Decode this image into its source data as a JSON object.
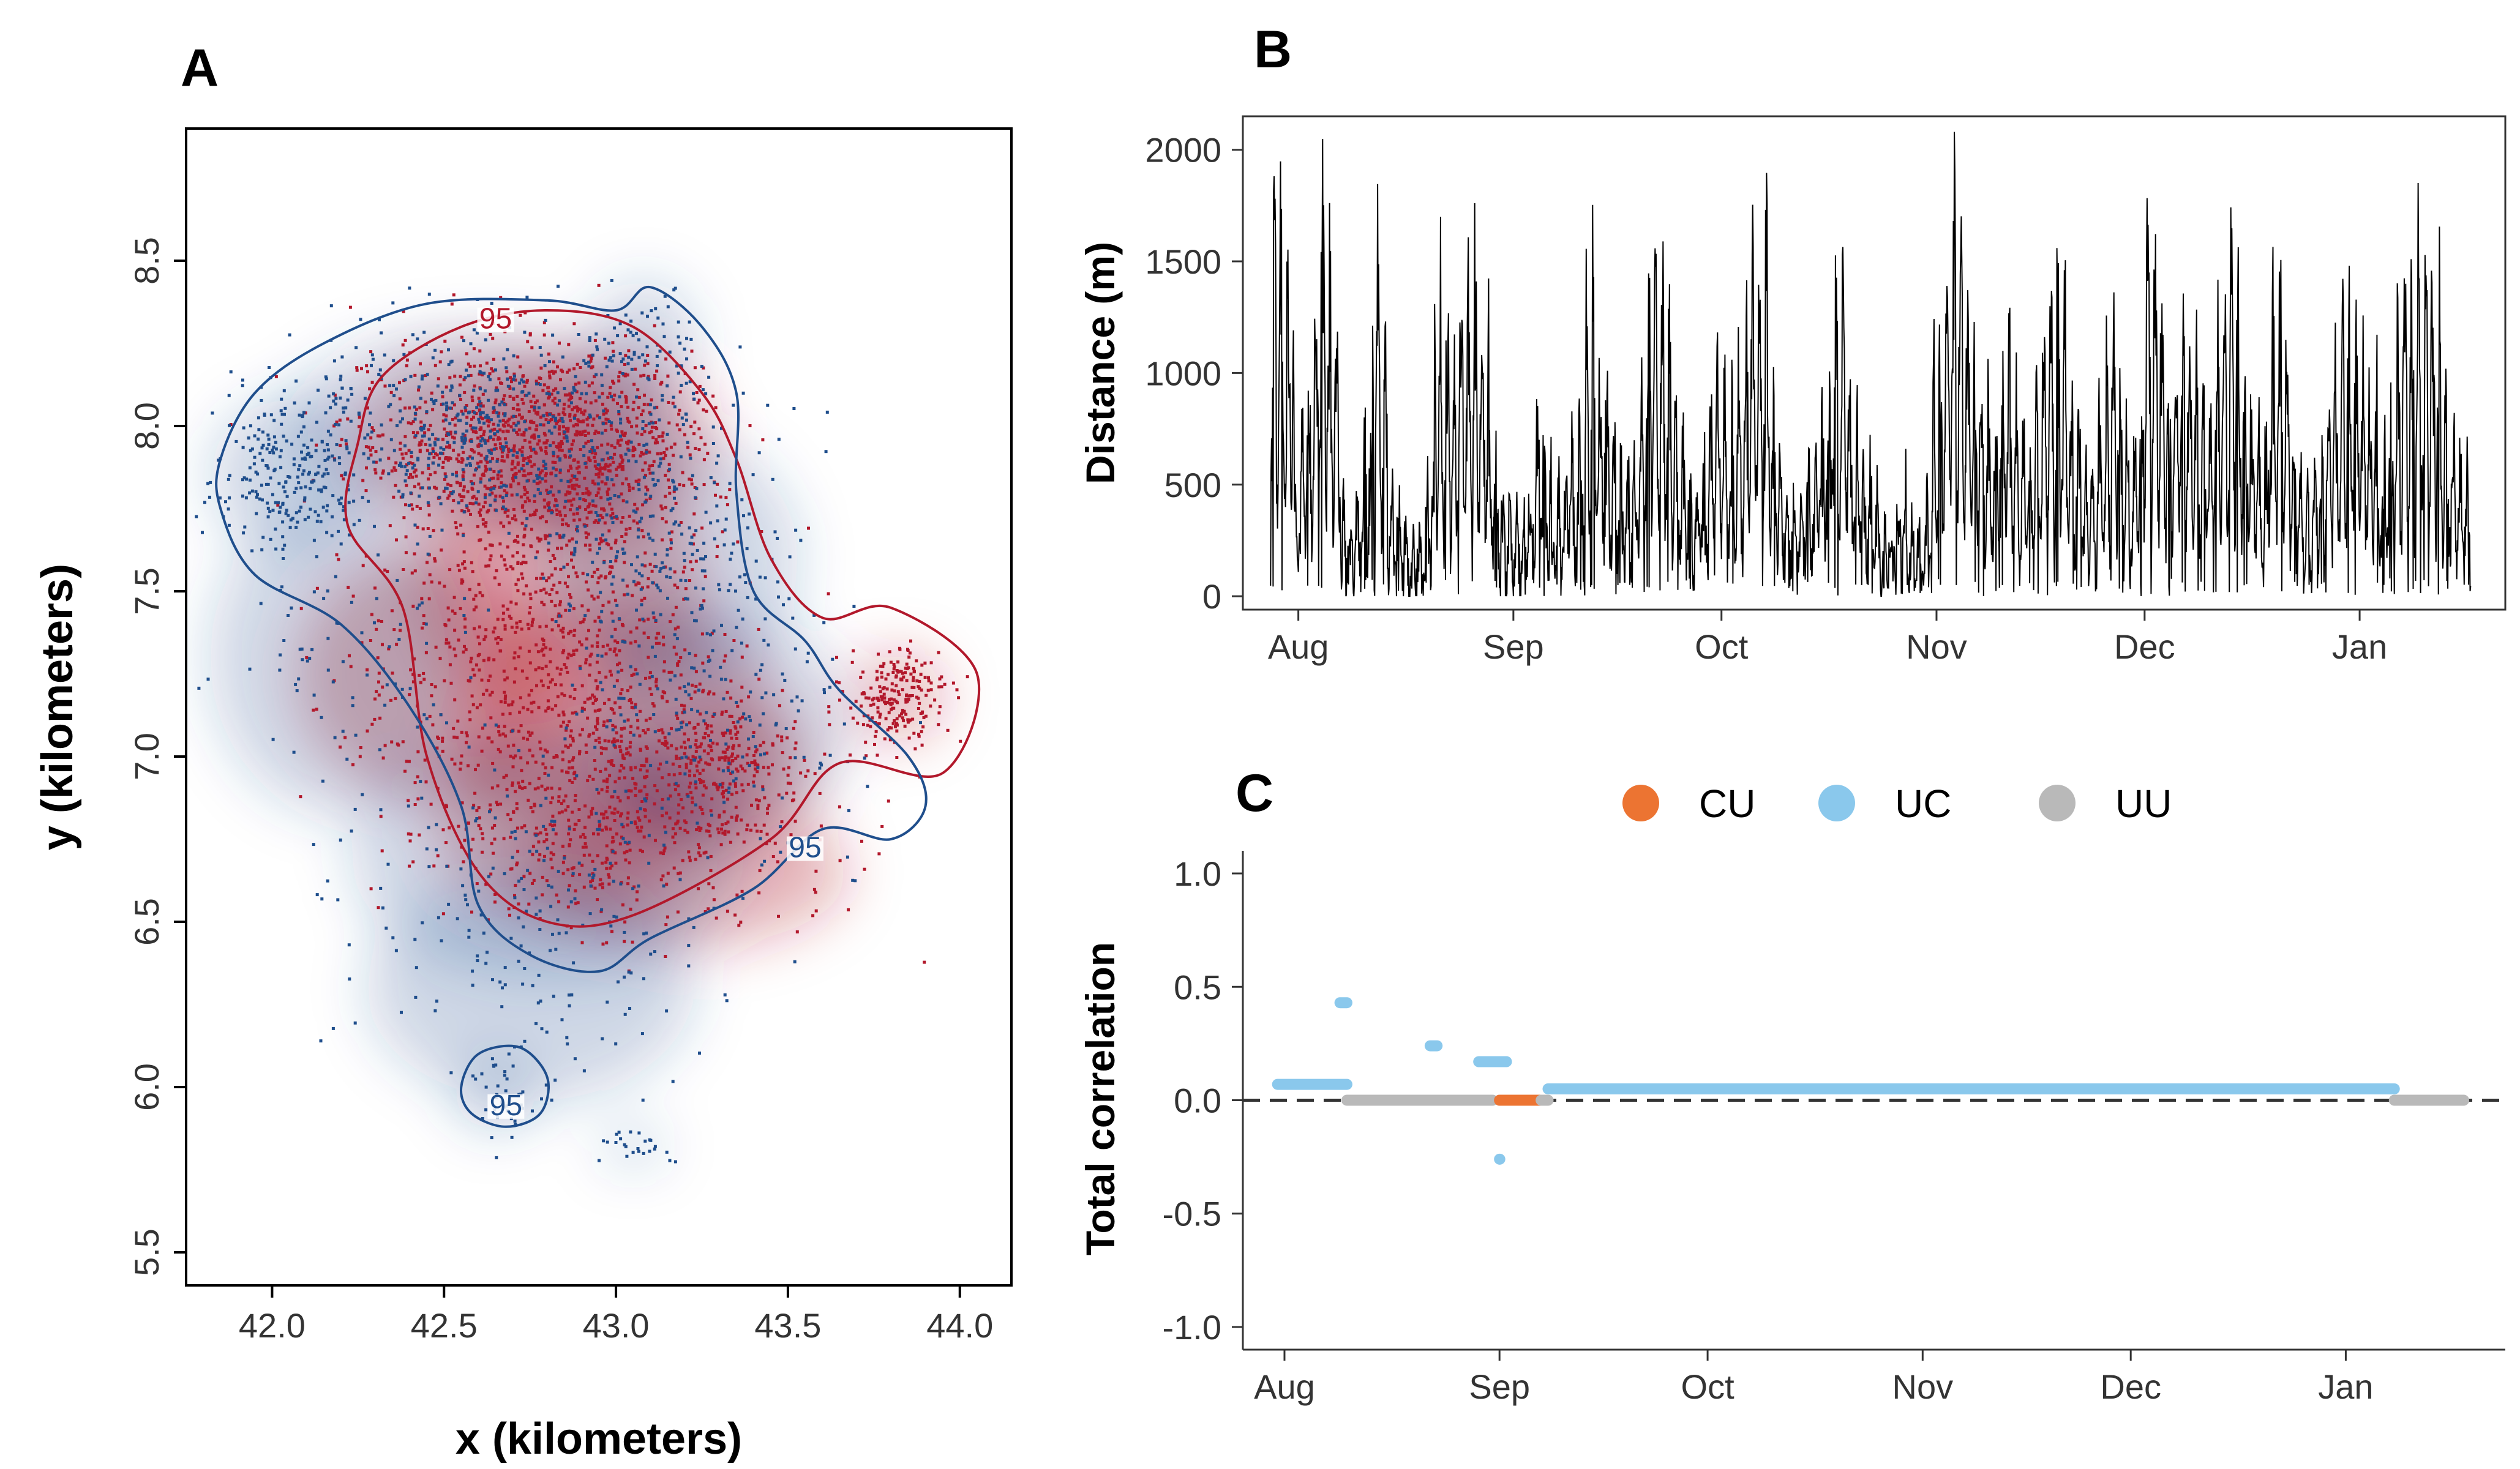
{
  "colors": {
    "red": "#b2182b",
    "blue": "#1f4e8c",
    "CU": "#ec7432",
    "UC": "#8ac8ec",
    "UU": "#b9b9b9"
  },
  "chart_data": [
    {
      "id": "A",
      "panel_label": "A",
      "type": "scatter",
      "xlabel": "x (kilometers)",
      "ylabel": "y (kilometers)",
      "xlim": [
        41.75,
        44.15
      ],
      "ylim": [
        5.4,
        8.9
      ],
      "xticks": [
        "42.0",
        "42.5",
        "43.0",
        "43.5",
        "44.0"
      ],
      "xtick_values": [
        42.0,
        42.5,
        43.0,
        43.5,
        44.0
      ],
      "yticks": [
        "5.5",
        "6.0",
        "6.5",
        "7.0",
        "7.5",
        "8.0",
        "8.5"
      ],
      "ytick_values": [
        5.5,
        6.0,
        6.5,
        7.0,
        7.5,
        8.0,
        8.5
      ],
      "contour_label": "95",
      "series": [
        {
          "color": "red",
          "clusters": [
            {
              "x": 42.65,
              "y": 7.95,
              "sx": 0.22,
              "sy": 0.15,
              "n": 700
            },
            {
              "x": 42.95,
              "y": 7.95,
              "sx": 0.18,
              "sy": 0.15,
              "n": 450
            },
            {
              "x": 42.85,
              "y": 7.5,
              "sx": 0.22,
              "sy": 0.2,
              "n": 450
            },
            {
              "x": 43.0,
              "y": 7.1,
              "sx": 0.25,
              "sy": 0.2,
              "n": 420
            },
            {
              "x": 43.3,
              "y": 6.95,
              "sx": 0.15,
              "sy": 0.12,
              "n": 260
            },
            {
              "x": 42.85,
              "y": 6.8,
              "sx": 0.2,
              "sy": 0.16,
              "n": 300
            },
            {
              "x": 43.82,
              "y": 7.18,
              "sx": 0.07,
              "sy": 0.07,
              "n": 220
            },
            {
              "x": 42.45,
              "y": 7.25,
              "sx": 0.2,
              "sy": 0.2,
              "n": 160
            },
            {
              "x": 43.2,
              "y": 6.65,
              "sx": 0.25,
              "sy": 0.12,
              "n": 90
            }
          ],
          "contours": [
            {
              "level": "95",
              "label_at": [
                42.65,
                8.31
              ],
              "path": [
                [
                  42.32,
                  8.15
                ],
                [
                  42.55,
                  8.3
                ],
                [
                  42.8,
                  8.35
                ],
                [
                  43.05,
                  8.3
                ],
                [
                  43.25,
                  8.1
                ],
                [
                  43.35,
                  7.9
                ],
                [
                  43.45,
                  7.6
                ],
                [
                  43.6,
                  7.42
                ],
                [
                  43.8,
                  7.45
                ],
                [
                  44.05,
                  7.25
                ],
                [
                  43.95,
                  6.95
                ],
                [
                  43.65,
                  6.98
                ],
                [
                  43.45,
                  6.75
                ],
                [
                  43.05,
                  6.52
                ],
                [
                  42.8,
                  6.5
                ],
                [
                  42.6,
                  6.65
                ],
                [
                  42.45,
                  7.0
                ],
                [
                  42.38,
                  7.45
                ],
                [
                  42.22,
                  7.7
                ],
                [
                  42.25,
                  7.95
                ],
                [
                  42.32,
                  8.15
                ]
              ]
            }
          ]
        },
        {
          "color": "blue",
          "clusters": [
            {
              "x": 42.6,
              "y": 8.0,
              "sx": 0.3,
              "sy": 0.15,
              "n": 520
            },
            {
              "x": 42.05,
              "y": 7.85,
              "sx": 0.12,
              "sy": 0.12,
              "n": 220
            },
            {
              "x": 43.15,
              "y": 7.6,
              "sx": 0.2,
              "sy": 0.2,
              "n": 260
            },
            {
              "x": 43.08,
              "y": 8.25,
              "sx": 0.08,
              "sy": 0.1,
              "n": 70
            },
            {
              "x": 43.3,
              "y": 7.1,
              "sx": 0.2,
              "sy": 0.18,
              "n": 140
            },
            {
              "x": 42.8,
              "y": 6.7,
              "sx": 0.3,
              "sy": 0.2,
              "n": 140
            },
            {
              "x": 42.75,
              "y": 6.3,
              "sx": 0.25,
              "sy": 0.18,
              "n": 90
            },
            {
              "x": 42.65,
              "y": 5.98,
              "sx": 0.06,
              "sy": 0.06,
              "n": 40
            },
            {
              "x": 43.05,
              "y": 5.82,
              "sx": 0.05,
              "sy": 0.03,
              "n": 25
            },
            {
              "x": 42.2,
              "y": 7.3,
              "sx": 0.2,
              "sy": 0.25,
              "n": 90
            }
          ],
          "contours": [
            {
              "level": "95",
              "label_at": [
                43.55,
                6.71
              ],
              "path": [
                [
                  41.85,
                  7.9
                ],
                [
                  41.95,
                  8.1
                ],
                [
                  42.15,
                  8.25
                ],
                [
                  42.45,
                  8.37
                ],
                [
                  42.8,
                  8.38
                ],
                [
                  43.0,
                  8.35
                ],
                [
                  43.1,
                  8.42
                ],
                [
                  43.25,
                  8.3
                ],
                [
                  43.35,
                  8.1
                ],
                [
                  43.35,
                  7.8
                ],
                [
                  43.4,
                  7.5
                ],
                [
                  43.55,
                  7.35
                ],
                [
                  43.65,
                  7.2
                ],
                [
                  43.85,
                  7.0
                ],
                [
                  43.9,
                  6.85
                ],
                [
                  43.8,
                  6.75
                ],
                [
                  43.6,
                  6.78
                ],
                [
                  43.4,
                  6.6
                ],
                [
                  43.1,
                  6.45
                ],
                [
                  42.95,
                  6.35
                ],
                [
                  42.75,
                  6.4
                ],
                [
                  42.6,
                  6.55
                ],
                [
                  42.55,
                  6.85
                ],
                [
                  42.4,
                  7.15
                ],
                [
                  42.2,
                  7.4
                ],
                [
                  41.95,
                  7.55
                ],
                [
                  41.85,
                  7.75
                ],
                [
                  41.85,
                  7.9
                ]
              ]
            },
            {
              "level": "95",
              "label_at": [
                42.68,
                5.93
              ],
              "path": [
                [
                  42.55,
                  6.0
                ],
                [
                  42.6,
                  6.1
                ],
                [
                  42.72,
                  6.12
                ],
                [
                  42.8,
                  6.03
                ],
                [
                  42.78,
                  5.92
                ],
                [
                  42.68,
                  5.88
                ],
                [
                  42.58,
                  5.92
                ],
                [
                  42.55,
                  6.0
                ]
              ]
            }
          ]
        }
      ]
    },
    {
      "id": "B",
      "panel_label": "B",
      "type": "line",
      "xlabel": "",
      "ylabel": "Distance (m)",
      "ylim": [
        -60,
        2150
      ],
      "xlim": [
        "2023-07-24",
        "2024-01-22"
      ],
      "xticks": [
        "Aug",
        "Sep",
        "Oct",
        "Nov",
        "Dec",
        "Jan"
      ],
      "xtick_dates": [
        "2023-08-01",
        "2023-09-01",
        "2023-10-01",
        "2023-11-01",
        "2023-12-01",
        "2024-01-01"
      ],
      "yticks": [
        "0",
        "500",
        "1000",
        "1500",
        "2000"
      ],
      "ytick_values": [
        0,
        500,
        1000,
        1500,
        2000
      ],
      "line_color": "#000000",
      "series": [
        {
          "start": "2023-07-28",
          "end": "2024-01-17",
          "daily_peaks": [
            1950,
            1800,
            1550,
            600,
            900,
            1200,
            1990,
            1700,
            1400,
            400,
            300,
            500,
            800,
            1600,
            1200,
            500,
            400,
            300,
            300,
            350,
            600,
            1450,
            1350,
            1000,
            1650,
            1500,
            1700,
            1400,
            700,
            500,
            400,
            380,
            350,
            600,
            900,
            650,
            400,
            500,
            700,
            900,
            1400,
            1600,
            1200,
            1000,
            800,
            600,
            700,
            900,
            1600,
            1500,
            1650,
            1300,
            800,
            700,
            500,
            600,
            900,
            1100,
            1000,
            900,
            1200,
            1500,
            1700,
            1800,
            1000,
            600,
            500,
            450,
            500,
            600,
            800,
            1000,
            1600,
            1750,
            1100,
            800,
            600,
            500,
            400,
            350,
            400,
            500,
            300,
            300,
            500,
            1200,
            1400,
            2060,
            1700,
            1400,
            1300,
            1000,
            900,
            1100,
            1200,
            900,
            800,
            700,
            1000,
            1300,
            1700,
            1500,
            1000,
            800,
            700,
            600,
            900,
            1100,
            1300,
            900,
            700,
            1000,
            1850,
            1700,
            1400,
            1200,
            1400,
            1550,
            1200,
            1000,
            900,
            1200,
            1500,
            1700,
            1400,
            1000,
            800,
            700,
            1400,
            1550,
            1200,
            800,
            600,
            500,
            700,
            900,
            1100,
            1300,
            1500,
            1400,
            1200,
            1000,
            800,
            900,
            1300,
            1600,
            1500,
            1900,
            1700,
            1500,
            1200,
            800,
            700,
            600
          ]
        }
      ]
    },
    {
      "id": "C",
      "panel_label": "C",
      "type": "scatter",
      "xlabel": "",
      "ylabel": "Total correlation",
      "ylim": [
        -1.1,
        1.1
      ],
      "xlim": [
        "2023-07-26",
        "2024-01-24"
      ],
      "xticks": [
        "Aug",
        "Sep",
        "Oct",
        "Nov",
        "Dec",
        "Jan"
      ],
      "xtick_dates": [
        "2023-08-01",
        "2023-09-01",
        "2023-10-01",
        "2023-11-01",
        "2023-12-01",
        "2024-01-01"
      ],
      "yticks": [
        "1.0",
        "0.5",
        "0.0",
        "-0.5",
        "-1.0"
      ],
      "ytick_values": [
        1.0,
        0.5,
        0.0,
        -0.5,
        -1.0
      ],
      "reference_line": 0.0,
      "legend": [
        {
          "key": "CU",
          "label": "CU"
        },
        {
          "key": "UC",
          "label": "UC"
        },
        {
          "key": "UU",
          "label": "UU"
        }
      ],
      "segments": [
        {
          "cat": "UC",
          "start": "2023-07-31",
          "end": "2023-08-10",
          "y": 0.07
        },
        {
          "cat": "UC",
          "start": "2023-08-09",
          "end": "2023-08-10",
          "y": 0.43
        },
        {
          "cat": "UU",
          "start": "2023-08-10",
          "end": "2023-08-31",
          "y": 0.0
        },
        {
          "cat": "UC",
          "start": "2023-08-22",
          "end": "2023-08-23",
          "y": 0.24
        },
        {
          "cat": "UC",
          "start": "2023-08-29",
          "end": "2023-09-02",
          "y": 0.17
        },
        {
          "cat": "UC",
          "start": "2023-09-01",
          "end": "2023-09-01",
          "y": -0.26
        },
        {
          "cat": "CU",
          "start": "2023-09-01",
          "end": "2023-09-07",
          "y": 0.0
        },
        {
          "cat": "UU",
          "start": "2023-09-07",
          "end": "2023-09-08",
          "y": 0.0
        },
        {
          "cat": "UC",
          "start": "2023-09-08",
          "end": "2024-01-08",
          "y": 0.05
        },
        {
          "cat": "UU",
          "start": "2024-01-08",
          "end": "2024-01-18",
          "y": 0.0
        }
      ]
    }
  ]
}
